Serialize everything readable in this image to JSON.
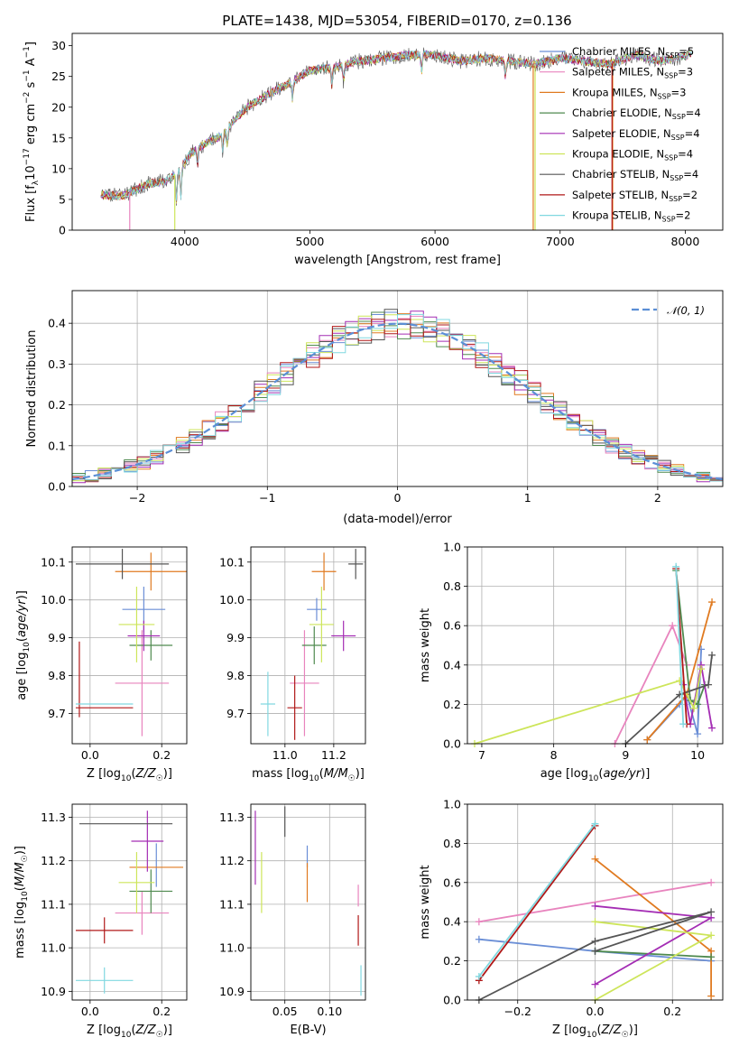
{
  "title": "PLATE=1438, MJD=53054, FIBERID=0170, z=0.136",
  "colors": {
    "Chabrier MILES": "#6a8ed6",
    "Salpeter MILES": "#e884be",
    "Kroupa MILES": "#e07a20",
    "Chabrier ELODIE": "#4f8a4f",
    "Salpeter ELODIE": "#a42db4",
    "Kroupa ELODIE": "#cde55a",
    "Chabrier STELIB": "#555555",
    "Salpeter STELIB": "#b01818",
    "Kroupa STELIB": "#80d8e0",
    "gaussian": "#5b8fd6"
  },
  "chart_data": [
    {
      "type": "line",
      "xlabel": "wavelength [Angstrom, rest frame]",
      "ylabel": "Flux [fλ10⁻¹⁷ erg cm⁻² s⁻¹ A⁻¹]",
      "xlim": [
        3100,
        8300
      ],
      "ylim": [
        0,
        32
      ],
      "xticks": [
        4000,
        5000,
        6000,
        7000,
        8000
      ],
      "yticks": [
        0,
        5,
        10,
        15,
        20,
        25,
        30
      ],
      "grid": false,
      "legend_position": "top-right",
      "legend": [
        {
          "label": "Chabrier MILES, N",
          "sub": "SSP",
          "tail": "=5",
          "key": "Chabrier MILES"
        },
        {
          "label": "Salpeter MILES, N",
          "sub": "SSP",
          "tail": "=3",
          "key": "Salpeter MILES"
        },
        {
          "label": "Kroupa MILES, N",
          "sub": "SSP",
          "tail": "=3",
          "key": "Kroupa MILES"
        },
        {
          "label": "Chabrier ELODIE, N",
          "sub": "SSP",
          "tail": "=4",
          "key": "Chabrier ELODIE"
        },
        {
          "label": "Salpeter ELODIE, N",
          "sub": "SSP",
          "tail": "=4",
          "key": "Salpeter ELODIE"
        },
        {
          "label": "Kroupa ELODIE, N",
          "sub": "SSP",
          "tail": "=4",
          "key": "Kroupa ELODIE"
        },
        {
          "label": "Chabrier STELIB, N",
          "sub": "SSP",
          "tail": "=4",
          "key": "Chabrier STELIB"
        },
        {
          "label": "Salpeter STELIB, N",
          "sub": "SSP",
          "tail": "=2",
          "key": "Salpeter STELIB"
        },
        {
          "label": "Kroupa STELIB, N",
          "sub": "SSP",
          "tail": "=2",
          "key": "Kroupa STELIB"
        }
      ],
      "continuum": {
        "x": [
          3330,
          3500,
          3700,
          3850,
          3950,
          4050,
          4200,
          4300,
          4400,
          4500,
          4700,
          4850,
          5000,
          5200,
          5400,
          5600,
          5800,
          6000,
          6200,
          6400,
          6600,
          6800,
          7000,
          7200,
          7400,
          7600,
          7800,
          8050
        ],
        "y": [
          5.8,
          5.5,
          7.5,
          8.0,
          9.5,
          12.5,
          14.5,
          15.5,
          18.0,
          20.0,
          22.5,
          24.0,
          26.0,
          26.5,
          27.5,
          28.0,
          28.5,
          28.5,
          27.5,
          28.0,
          27.5,
          27.0,
          28.0,
          27.5,
          27.0,
          28.5,
          27.5,
          28.5
        ]
      }
    },
    {
      "type": "bar",
      "xlabel": "(data-model)/error",
      "ylabel": "Normed distribution",
      "xlim": [
        -2.5,
        2.5
      ],
      "ylim": [
        0,
        0.48
      ],
      "xticks": [
        -2,
        -1,
        0,
        1,
        2
      ],
      "yticks": [
        0.0,
        0.1,
        0.2,
        0.3,
        0.4
      ],
      "grid": true,
      "legend_position": "top-right",
      "legend": [
        {
          "label": "𝒩(0, 1)",
          "key": "gaussian"
        }
      ],
      "bin_width": 0.1,
      "gaussian": {
        "mean": 0,
        "sigma": 1
      }
    },
    {
      "type": "scatter",
      "xlabel": "Z [log10(Z/Z☉)]",
      "ylabel": "age  [log10(age/yr)]",
      "xlim": [
        -0.05,
        0.27
      ],
      "ylim": [
        9.62,
        10.14
      ],
      "xticks": [
        0.0,
        0.2
      ],
      "yticks": [
        9.7,
        9.8,
        9.9,
        10.0,
        10.1
      ],
      "grid": true,
      "points": [
        {
          "key": "Chabrier MILES",
          "x": 0.15,
          "xerr": 0.06,
          "y": 9.975,
          "yerr": 0.06
        },
        {
          "key": "Salpeter MILES",
          "x": 0.145,
          "xerr": 0.075,
          "y": 9.78,
          "yerr": 0.14
        },
        {
          "key": "Kroupa MILES",
          "x": 0.17,
          "xerr": 0.1,
          "y": 10.075,
          "yerr": 0.05
        },
        {
          "key": "Chabrier ELODIE",
          "x": 0.17,
          "xerr": 0.06,
          "y": 9.88,
          "yerr": 0.04
        },
        {
          "key": "Salpeter ELODIE",
          "x": 0.15,
          "xerr": 0.045,
          "y": 9.905,
          "yerr": 0.04
        },
        {
          "key": "Kroupa ELODIE",
          "x": 0.13,
          "xerr": 0.05,
          "y": 9.935,
          "yerr": 0.1
        },
        {
          "key": "Chabrier STELIB",
          "x": 0.09,
          "xerr": 0.13,
          "y": 10.095,
          "yerr": 0.04
        },
        {
          "key": "Salpeter STELIB",
          "x": -0.03,
          "xerr": 0.0,
          "y": 9.79,
          "yerr": 0.1
        },
        {
          "key": "Salpeter STELIB",
          "x": 0.04,
          "xerr": 0.08,
          "y": 9.715,
          "yerr": 0.0
        },
        {
          "key": "Kroupa STELIB",
          "x": 0.04,
          "xerr": 0.08,
          "y": 9.725,
          "yerr": 0.0
        }
      ]
    },
    {
      "type": "scatter",
      "xlabel": "mass [log10(M/M☉)]",
      "ylabel": "",
      "xlim": [
        10.86,
        11.33
      ],
      "ylim": [
        9.62,
        10.14
      ],
      "xticks": [
        11.0,
        11.2
      ],
      "yticks": [
        9.7,
        9.8,
        9.9,
        10.0,
        10.1
      ],
      "grid": true,
      "points": [
        {
          "key": "Chabrier MILES",
          "x": 11.13,
          "xerr": 0.04,
          "y": 9.975,
          "yerr": 0.03
        },
        {
          "key": "Salpeter MILES",
          "x": 11.08,
          "xerr": 0.06,
          "y": 9.78,
          "yerr": 0.14
        },
        {
          "key": "Kroupa MILES",
          "x": 11.16,
          "xerr": 0.05,
          "y": 10.075,
          "yerr": 0.05
        },
        {
          "key": "Chabrier ELODIE",
          "x": 11.12,
          "xerr": 0.05,
          "y": 9.88,
          "yerr": 0.05
        },
        {
          "key": "Salpeter ELODIE",
          "x": 11.24,
          "xerr": 0.05,
          "y": 9.905,
          "yerr": 0.04
        },
        {
          "key": "Kroupa ELODIE",
          "x": 11.15,
          "xerr": 0.05,
          "y": 9.935,
          "yerr": 0.1
        },
        {
          "key": "Chabrier STELIB",
          "x": 11.29,
          "xerr": 0.03,
          "y": 10.095,
          "yerr": 0.04
        },
        {
          "key": "Salpeter STELIB",
          "x": 11.04,
          "xerr": 0.03,
          "y": 9.715,
          "yerr": 0.085
        },
        {
          "key": "Kroupa STELIB",
          "x": 10.93,
          "xerr": 0.03,
          "y": 9.725,
          "yerr": 0.085
        }
      ]
    },
    {
      "type": "line",
      "xlabel": "age  [log10(age/yr)]",
      "ylabel": "mass weight",
      "xlim": [
        6.8,
        10.35
      ],
      "ylim": [
        0,
        1.0
      ],
      "xticks": [
        7,
        8,
        9,
        10
      ],
      "yticks": [
        0.0,
        0.2,
        0.4,
        0.6,
        0.8,
        1.0
      ],
      "grid": true,
      "series": [
        {
          "key": "Chabrier MILES",
          "x": [
            9.3,
            9.75,
            9.85,
            10.0,
            10.05
          ],
          "y": [
            0.02,
            0.2,
            0.25,
            0.05,
            0.48
          ]
        },
        {
          "key": "Salpeter MILES",
          "x": [
            8.85,
            9.65,
            9.85
          ],
          "y": [
            0.0,
            0.6,
            0.4
          ]
        },
        {
          "key": "Kroupa MILES",
          "x": [
            9.3,
            9.85,
            10.2
          ],
          "y": [
            0.02,
            0.25,
            0.72
          ]
        },
        {
          "key": "Chabrier ELODIE",
          "x": [
            9.7,
            9.9,
            10.0,
            10.1
          ],
          "y": [
            0.88,
            0.22,
            0.2,
            0.3
          ]
        },
        {
          "key": "Salpeter ELODIE",
          "x": [
            9.8,
            9.9,
            10.05,
            10.2
          ],
          "y": [
            0.3,
            0.1,
            0.4,
            0.08
          ]
        },
        {
          "key": "Kroupa ELODIE",
          "x": [
            6.9,
            9.75,
            9.95,
            10.05
          ],
          "y": [
            0.0,
            0.32,
            0.18,
            0.38
          ]
        },
        {
          "key": "Chabrier STELIB",
          "x": [
            9.0,
            9.75,
            10.15,
            10.2
          ],
          "y": [
            0.0,
            0.25,
            0.3,
            0.45
          ]
        },
        {
          "key": "Salpeter STELIB",
          "x": [
            9.7,
            9.85
          ],
          "y": [
            0.89,
            0.1
          ]
        },
        {
          "key": "Kroupa STELIB",
          "x": [
            9.7,
            9.8
          ],
          "y": [
            0.9,
            0.1
          ]
        }
      ]
    },
    {
      "type": "scatter",
      "xlabel": "Z [log10(Z/Z☉)]",
      "ylabel": "mass [log10(M/M☉)]",
      "xlim": [
        -0.05,
        0.27
      ],
      "ylim": [
        10.88,
        11.33
      ],
      "xticks": [
        0.0,
        0.2
      ],
      "yticks": [
        10.9,
        11.0,
        11.1,
        11.2,
        11.3
      ],
      "grid": true,
      "points": [
        {
          "key": "Chabrier MILES",
          "x": 0.185,
          "xerr": 0.0,
          "y": 11.19,
          "yerr": 0.05
        },
        {
          "key": "Salpeter MILES",
          "x": 0.145,
          "xerr": 0.075,
          "y": 11.08,
          "yerr": 0.05
        },
        {
          "key": "Kroupa MILES",
          "x": 0.185,
          "xerr": 0.075,
          "y": 11.185,
          "yerr": 0.0
        },
        {
          "key": "Chabrier ELODIE",
          "x": 0.17,
          "xerr": 0.06,
          "y": 11.13,
          "yerr": 0.05
        },
        {
          "key": "Salpeter ELODIE",
          "x": 0.16,
          "xerr": 0.045,
          "y": 11.245,
          "yerr": 0.07
        },
        {
          "key": "Kroupa ELODIE",
          "x": 0.13,
          "xerr": 0.05,
          "y": 11.15,
          "yerr": 0.07
        },
        {
          "key": "Chabrier STELIB",
          "x": 0.1,
          "xerr": 0.13,
          "y": 11.285,
          "yerr": 0.0
        },
        {
          "key": "Salpeter STELIB",
          "x": 0.04,
          "xerr": 0.08,
          "y": 11.04,
          "yerr": 0.03
        },
        {
          "key": "Kroupa STELIB",
          "x": 0.04,
          "xerr": 0.08,
          "y": 10.925,
          "yerr": 0.03
        }
      ]
    },
    {
      "type": "scatter",
      "xlabel": "E(B-V)",
      "ylabel": "",
      "xlim": [
        0.012,
        0.14
      ],
      "ylim": [
        10.88,
        11.33
      ],
      "xticks": [
        0.05,
        0.1
      ],
      "yticks": [
        10.9,
        11.0,
        11.1,
        11.2,
        11.3
      ],
      "grid": true,
      "points": [
        {
          "key": "Chabrier MILES",
          "x": 0.075,
          "xerr": 0,
          "y": 11.21,
          "yerr": 0.025
        },
        {
          "key": "Kroupa MILES",
          "x": 0.075,
          "xerr": 0,
          "y": 11.15,
          "yerr": 0.045
        },
        {
          "key": "Salpeter ELODIE",
          "x": 0.017,
          "xerr": 0,
          "y": 11.23,
          "yerr": 0.085
        },
        {
          "key": "Kroupa ELODIE",
          "x": 0.024,
          "xerr": 0,
          "y": 11.15,
          "yerr": 0.07
        },
        {
          "key": "Chabrier STELIB",
          "x": 0.05,
          "xerr": 0,
          "y": 11.29,
          "yerr": 0.035
        },
        {
          "key": "Salpeter STELIB",
          "x": 0.132,
          "xerr": 0,
          "y": 11.04,
          "yerr": 0.035
        },
        {
          "key": "Salpeter MILES",
          "x": 0.132,
          "xerr": 0,
          "y": 11.12,
          "yerr": 0.025
        },
        {
          "key": "Kroupa STELIB",
          "x": 0.135,
          "xerr": 0,
          "y": 10.925,
          "yerr": 0.035
        }
      ]
    },
    {
      "type": "line",
      "xlabel": "Z [log10(Z/Z☉)]",
      "ylabel": "mass weight",
      "xlim": [
        -0.33,
        0.33
      ],
      "ylim": [
        0,
        1.0
      ],
      "xticks": [
        -0.2,
        0.0,
        0.2
      ],
      "yticks": [
        0.0,
        0.2,
        0.4,
        0.6,
        0.8,
        1.0
      ],
      "grid": true,
      "series": [
        {
          "key": "Chabrier MILES",
          "x": [
            -0.3,
            0.0,
            0.3
          ],
          "y": [
            0.31,
            0.25,
            0.2
          ]
        },
        {
          "key": "Salpeter MILES",
          "x": [
            -0.3,
            0.3
          ],
          "y": [
            0.4,
            0.6
          ]
        },
        {
          "key": "Kroupa MILES",
          "x": [
            0.0,
            0.3,
            0.3
          ],
          "y": [
            0.72,
            0.25,
            0.02
          ]
        },
        {
          "key": "Chabrier ELODIE",
          "x": [
            0.0,
            0.3
          ],
          "y": [
            0.25,
            0.22
          ]
        },
        {
          "key": "Salpeter ELODIE",
          "x": [
            0.0,
            0.3,
            0.0
          ],
          "y": [
            0.08,
            0.42,
            0.48
          ]
        },
        {
          "key": "Kroupa ELODIE",
          "x": [
            0.0,
            0.3,
            0.0
          ],
          "y": [
            0.0,
            0.33,
            0.4
          ]
        },
        {
          "key": "Chabrier STELIB",
          "x": [
            -0.3,
            0.0,
            0.3,
            0.0
          ],
          "y": [
            0.0,
            0.3,
            0.45,
            0.25
          ]
        },
        {
          "key": "Salpeter STELIB",
          "x": [
            -0.3,
            0.0
          ],
          "y": [
            0.1,
            0.89
          ]
        },
        {
          "key": "Kroupa STELIB",
          "x": [
            -0.3,
            0.0
          ],
          "y": [
            0.12,
            0.9
          ]
        }
      ]
    }
  ]
}
